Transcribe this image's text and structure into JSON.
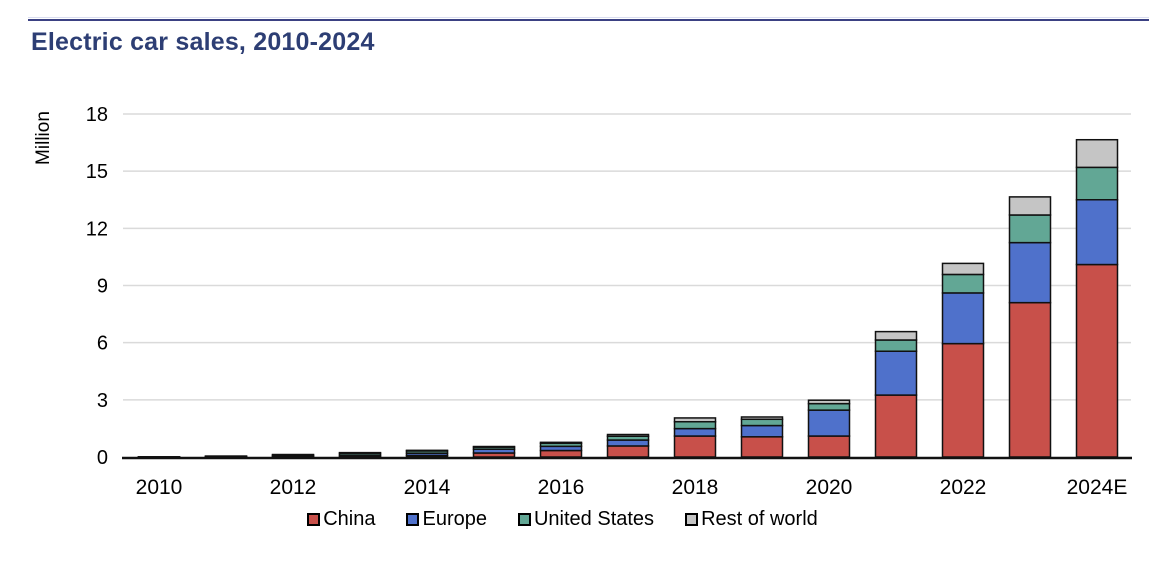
{
  "title": "Electric car sales, 2010-2024",
  "style": {
    "accent_navy": "#2D3E74",
    "rule_color": "#3B4183",
    "axis_color": "#111111",
    "gridline_color": "#DADADA",
    "background": "#FFFFFF"
  },
  "chart_data": {
    "type": "bar",
    "stacked": true,
    "title": "Electric car sales, 2010-2024",
    "xlabel": "",
    "ylabel": "Million",
    "ylim": [
      0,
      18
    ],
    "yticks": [
      0,
      3,
      6,
      9,
      12,
      15,
      18
    ],
    "grid": true,
    "legend_position": "bottom",
    "categories": [
      "2010",
      "2011",
      "2012",
      "2013",
      "2014",
      "2015",
      "2016",
      "2017",
      "2018",
      "2019",
      "2020",
      "2021",
      "2022",
      "2023",
      "2024E"
    ],
    "xticks_shown": [
      "2010",
      "2012",
      "2014",
      "2016",
      "2018",
      "2020",
      "2022",
      "2024E"
    ],
    "series": [
      {
        "name": "China",
        "color": "#C8504A",
        "values": [
          0.0,
          0.01,
          0.01,
          0.02,
          0.08,
          0.21,
          0.34,
          0.58,
          1.1,
          1.06,
          1.1,
          3.25,
          5.95,
          8.1,
          10.1
        ]
      },
      {
        "name": "Europe",
        "color": "#4F71CB",
        "values": [
          0.0,
          0.01,
          0.04,
          0.08,
          0.12,
          0.2,
          0.22,
          0.31,
          0.39,
          0.59,
          1.36,
          2.3,
          2.66,
          3.15,
          3.4
        ]
      },
      {
        "name": "United States",
        "color": "#62A795",
        "values": [
          0.0,
          0.02,
          0.05,
          0.1,
          0.12,
          0.11,
          0.16,
          0.2,
          0.36,
          0.33,
          0.34,
          0.59,
          0.97,
          1.45,
          1.7
        ]
      },
      {
        "name": "Rest of world",
        "color": "#C5C5C5",
        "values": [
          0.01,
          0.01,
          0.03,
          0.03,
          0.03,
          0.03,
          0.05,
          0.09,
          0.2,
          0.12,
          0.18,
          0.44,
          0.58,
          0.95,
          1.45
        ]
      }
    ],
    "totals": [
      0.01,
      0.05,
      0.13,
      0.23,
      0.35,
      0.55,
      0.77,
      1.18,
      2.05,
      2.1,
      2.98,
      6.58,
      10.16,
      13.65,
      16.65
    ]
  }
}
